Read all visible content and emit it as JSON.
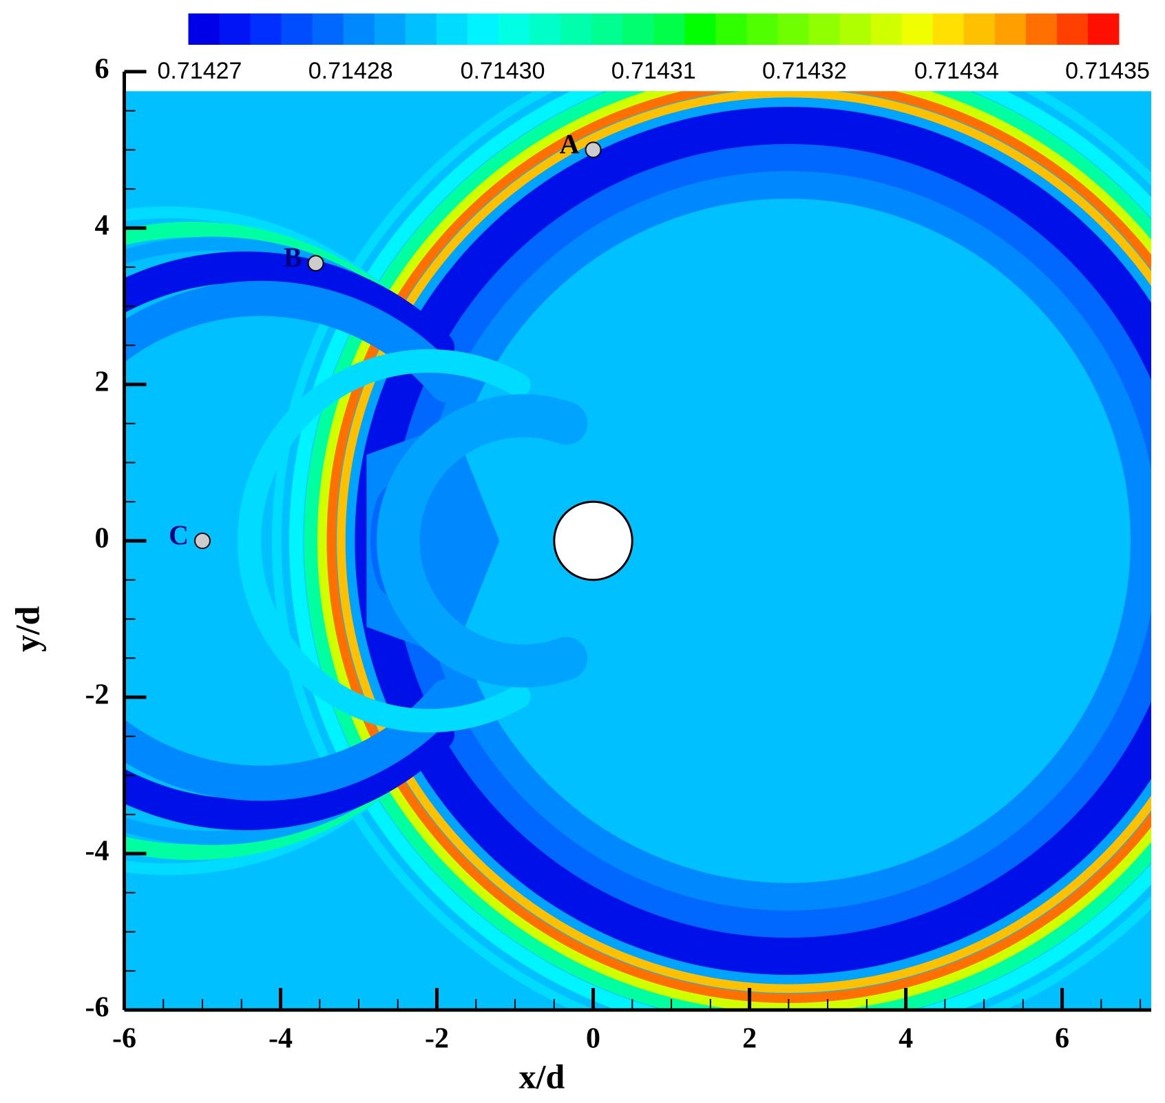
{
  "chart_data": {
    "type": "contour",
    "xlabel": "x/d",
    "ylabel": "y/d",
    "xlim": [
      -6,
      7.14
    ],
    "ylim": [
      -6,
      6
    ],
    "xticks": [
      -6,
      -4,
      -2,
      0,
      2,
      4,
      6
    ],
    "yticks": [
      6,
      4,
      2,
      0,
      -2,
      -4,
      -6
    ],
    "xminorticks": [
      -5.5,
      -5,
      -4.5,
      -3.5,
      -3,
      -2.5,
      -1.5,
      -1,
      -0.5,
      0.5,
      1,
      1.5,
      2.5,
      3,
      3.5,
      4.5,
      5,
      5.5,
      6.5,
      7
    ],
    "yminorticks": [
      5.5,
      5,
      4.5,
      3.5,
      3,
      2.5,
      1.5,
      1,
      0.5,
      -0.5,
      -1,
      -1.5,
      -2.5,
      -3,
      -3.5,
      -4.5,
      -5,
      -5.5
    ],
    "colorbar": {
      "clim": [
        0.714269,
        0.714351
      ],
      "ticks": [
        0.71427,
        {
          "value": 0.7142833,
          "label": "0.71428"
        },
        {
          "value": 0.7142967,
          "label": "0.71430"
        },
        0.71431,
        {
          "value": 0.7143233,
          "label": "0.71432"
        },
        {
          "value": 0.7143367,
          "label": "0.71434"
        },
        0.71435
      ],
      "colors": [
        "#0000e8",
        "#0014f5",
        "#0030ff",
        "#004cff",
        "#0068ff",
        "#0088ff",
        "#00a4ff",
        "#00c0ff",
        "#00dcff",
        "#00f4ff",
        "#00ffe4",
        "#00ffc8",
        "#00ffac",
        "#00ff90",
        "#00ff70",
        "#00ff48",
        "#00ff00",
        "#30ff00",
        "#50ff00",
        "#70ff00",
        "#90ff00",
        "#b0ff00",
        "#d0ff00",
        "#f0ff00",
        "#ffe000",
        "#ffc000",
        "#ffa000",
        "#ff7000",
        "#ff4000",
        "#ff1000"
      ]
    },
    "points": [
      {
        "label": "A",
        "x": 0,
        "y": 5,
        "color": "#000000"
      },
      {
        "label": "B",
        "x": -3.55,
        "y": 3.55,
        "color": "#000080"
      },
      {
        "label": "C",
        "x": -5,
        "y": 0,
        "color": "#000080"
      }
    ],
    "cylinder": {
      "x": 0,
      "y": 0,
      "radius": 0.5
    }
  }
}
